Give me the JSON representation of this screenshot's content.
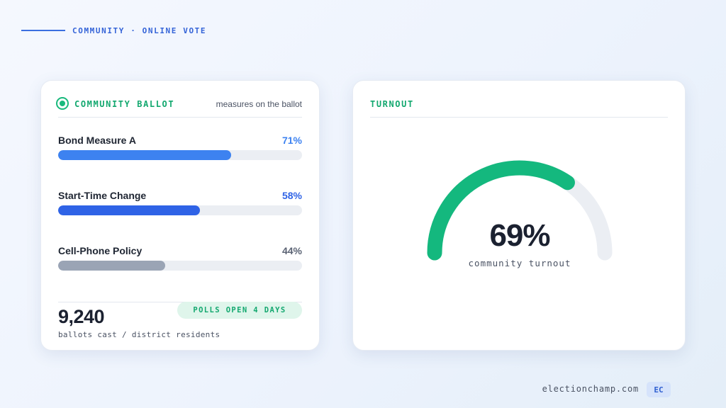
{
  "header": {
    "eyebrow": "COMMUNITY · ONLINE VOTE"
  },
  "ballot_card": {
    "title": "COMMUNITY BALLOT",
    "meta": "measures on the ballot",
    "measures": [
      {
        "label": "Bond Measure A",
        "percent_text": "71%",
        "percent": 71,
        "color": "#3d82f0",
        "pct_color": "#3d82f0"
      },
      {
        "label": "Start-Time Change",
        "percent_text": "58%",
        "percent": 58,
        "color": "#2f63e6",
        "pct_color": "#2f63e6"
      },
      {
        "label": "Cell-Phone Policy",
        "percent_text": "44%",
        "percent": 44,
        "color": "#9aa4b5",
        "pct_color": "#5b6374"
      }
    ],
    "ballots_cast": "9,240",
    "ballots_caption": "ballots cast / district residents",
    "status_pill": "POLLS OPEN 4 DAYS"
  },
  "turnout_card": {
    "title": "TURNOUT",
    "value_text": "69%",
    "value": 69,
    "caption": "community turnout",
    "colors": {
      "fill": "#14b87e",
      "track": "#ebeef3"
    }
  },
  "footer": {
    "domain": "electionchamp.com",
    "badge": "EC"
  }
}
